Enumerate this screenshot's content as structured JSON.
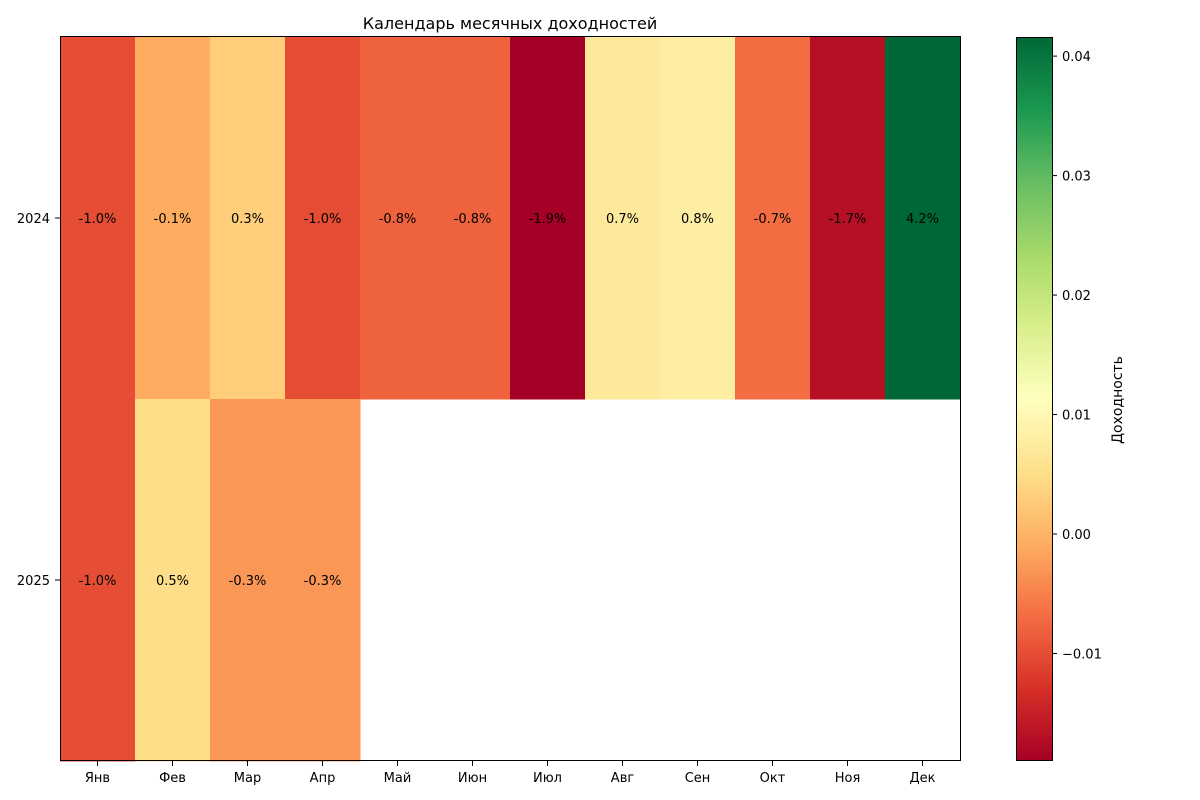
{
  "chart_data": {
    "type": "heatmap",
    "title": "Календарь месячных доходностей",
    "columns": [
      "Янв",
      "Фев",
      "Мар",
      "Апр",
      "Май",
      "Июн",
      "Июл",
      "Авг",
      "Сен",
      "Окт",
      "Ноя",
      "Дек"
    ],
    "rows": [
      "2024",
      "2025"
    ],
    "values": [
      [
        -0.01,
        -0.001,
        0.003,
        -0.01,
        -0.008,
        -0.008,
        -0.019,
        0.007,
        0.008,
        -0.007,
        -0.017,
        0.042
      ],
      [
        -0.01,
        0.005,
        -0.003,
        -0.003,
        null,
        null,
        null,
        null,
        null,
        null,
        null,
        null
      ]
    ],
    "cell_labels": [
      [
        "-1.0%",
        "-0.1%",
        "0.3%",
        "-1.0%",
        "-0.8%",
        "-0.8%",
        "-1.9%",
        "0.7%",
        "0.8%",
        "-0.7%",
        "-1.7%",
        "4.2%"
      ],
      [
        "-1.0%",
        "0.5%",
        "-0.3%",
        "-0.3%",
        null,
        null,
        null,
        null,
        null,
        null,
        null,
        null
      ]
    ],
    "colormap": "RdYlGn",
    "colorbar": {
      "label": "Доходность",
      "range": [
        -0.019,
        0.0416
      ],
      "ticks": [
        -0.01,
        0.0,
        0.01,
        0.02,
        0.03,
        0.04
      ],
      "tick_labels": [
        "−0.01",
        "0.00",
        "0.01",
        "0.02",
        "0.03",
        "0.04"
      ]
    },
    "grid": false,
    "legend": "colorbar-right"
  }
}
